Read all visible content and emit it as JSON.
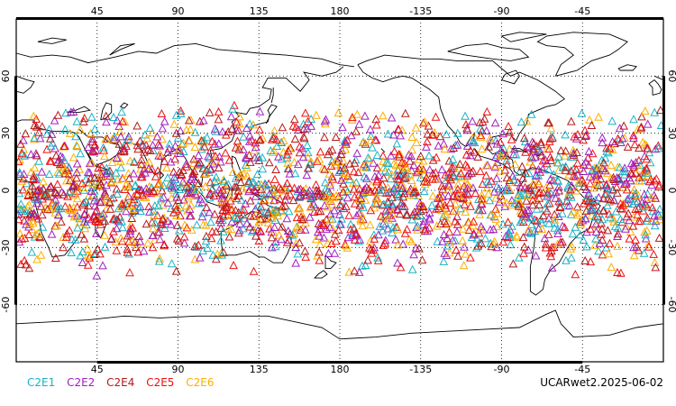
{
  "chart_data": {
    "type": "scatter",
    "title": "",
    "projection": "cylindrical, centered on 180",
    "lon_range": [
      0,
      360
    ],
    "lat_range": [
      -90,
      90
    ],
    "grid": "dotted",
    "x_ticks": [
      "45",
      "90",
      "135",
      "180",
      "-135",
      "-90",
      "-45"
    ],
    "y_ticks": [
      "60",
      "30",
      "0",
      "-30",
      "-60"
    ],
    "marker": "open triangle",
    "series": [
      {
        "name": "C2E1",
        "color": "#19b3c6"
      },
      {
        "name": "C2E2",
        "color": "#a020c0"
      },
      {
        "name": "C2E4",
        "color": "#b81818"
      },
      {
        "name": "C2E5",
        "color": "#ee1010"
      },
      {
        "name": "C2E6",
        "color": "#ffae00"
      }
    ],
    "obs_lat_extent": [
      -45,
      45
    ]
  },
  "footer": {
    "stamp": "UCARwet2.2025-06-02"
  }
}
